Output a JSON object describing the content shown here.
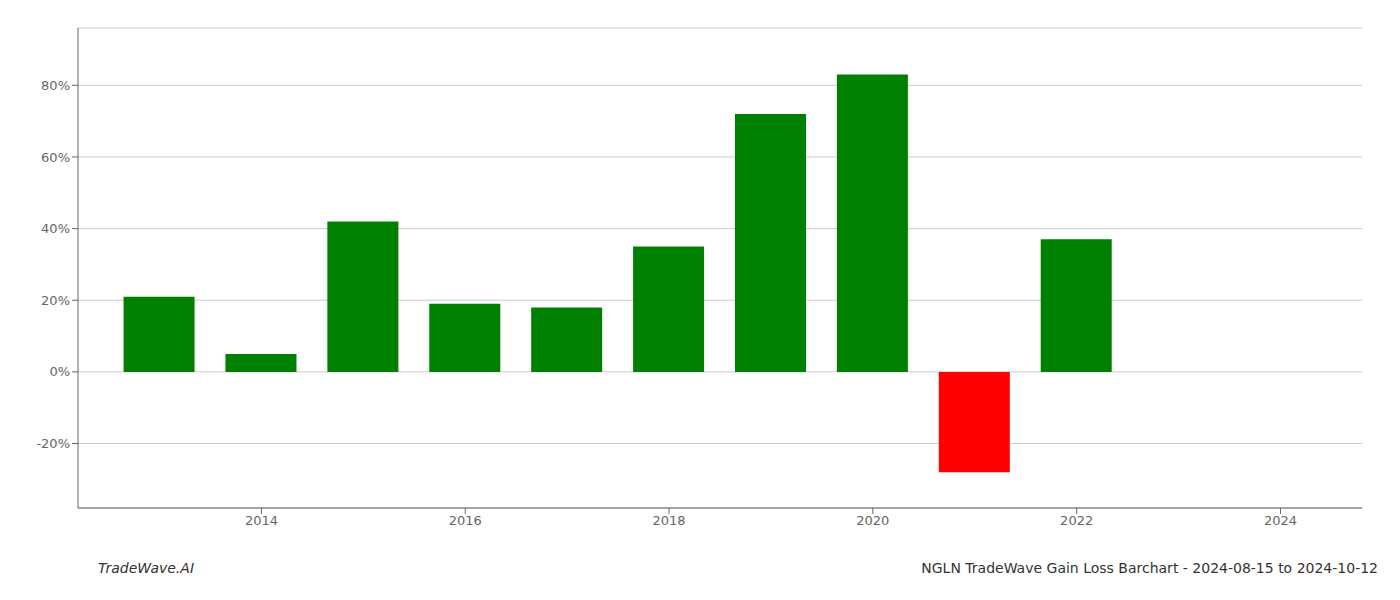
{
  "chart_data": {
    "type": "bar",
    "title": "NGLN TradeWave Gain Loss Barchart - 2024-08-15 to 2024-10-12",
    "annotations": [
      "TradeWave.AI"
    ],
    "x": [
      2013,
      2014,
      2015,
      2016,
      2017,
      2018,
      2019,
      2020,
      2021,
      2022
    ],
    "values": [
      0.21,
      0.05,
      0.42,
      0.19,
      0.18,
      0.35,
      0.72,
      0.83,
      -0.28,
      0.37
    ],
    "colors": [
      "#008000",
      "#008000",
      "#008000",
      "#008000",
      "#008000",
      "#008000",
      "#008000",
      "#008000",
      "#ff0000",
      "#008000"
    ],
    "xlim": [
      2012.2,
      2024.8
    ],
    "xticks": [
      2014,
      2016,
      2018,
      2020,
      2022,
      2024
    ],
    "ylim": [
      -0.38,
      0.96
    ],
    "yticks": [
      {
        "value": -0.2,
        "label": "-20%"
      },
      {
        "value": 0.0,
        "label": "0%"
      },
      {
        "value": 0.2,
        "label": "20%"
      },
      {
        "value": 0.4,
        "label": "40%"
      },
      {
        "value": 0.6,
        "label": "60%"
      },
      {
        "value": 0.8,
        "label": "80%"
      }
    ],
    "grid": true
  }
}
